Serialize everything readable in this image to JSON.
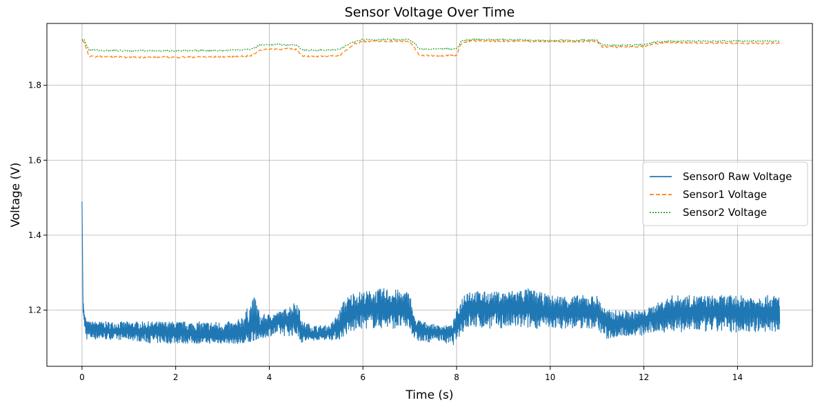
{
  "chart_data": {
    "type": "line",
    "title": "Sensor Voltage Over Time",
    "xlabel": "Time (s)",
    "ylabel": "Voltage (V)",
    "xlim": [
      -0.75,
      15.6
    ],
    "ylim": [
      1.05,
      1.965
    ],
    "xticks": [
      0,
      2,
      4,
      6,
      8,
      10,
      12,
      14
    ],
    "xtick_labels": [
      "0",
      "2",
      "4",
      "6",
      "8",
      "10",
      "12",
      "14"
    ],
    "yticks": [
      1.2,
      1.4,
      1.6,
      1.8
    ],
    "ytick_labels": [
      "1.2",
      "1.4",
      "1.6",
      "1.8"
    ],
    "grid": true,
    "legend_position": "center-right",
    "series": [
      {
        "name": "Sensor0 Raw Voltage",
        "color": "#1f77b4",
        "style": "solid",
        "x": [
          0.0,
          0.02,
          0.05,
          0.1,
          0.15,
          0.3,
          0.6,
          1.0,
          1.5,
          2.0,
          2.5,
          3.0,
          3.3,
          3.5,
          3.7,
          3.8,
          4.0,
          4.3,
          4.6,
          4.7,
          5.0,
          5.3,
          5.5,
          5.6,
          5.8,
          6.0,
          6.5,
          7.0,
          7.1,
          7.3,
          7.6,
          7.9,
          8.0,
          8.2,
          8.5,
          9.0,
          9.5,
          10.0,
          10.5,
          11.0,
          11.2,
          11.5,
          11.8,
          12.0,
          12.3,
          12.6,
          13.0,
          13.5,
          14.0,
          14.5,
          14.9
        ],
        "y": [
          1.49,
          1.23,
          1.18,
          1.16,
          1.15,
          1.15,
          1.14,
          1.14,
          1.14,
          1.14,
          1.13,
          1.13,
          1.13,
          1.14,
          1.16,
          1.14,
          1.16,
          1.17,
          1.17,
          1.14,
          1.13,
          1.14,
          1.15,
          1.17,
          1.19,
          1.2,
          1.2,
          1.19,
          1.15,
          1.14,
          1.14,
          1.14,
          1.16,
          1.2,
          1.2,
          1.2,
          1.2,
          1.19,
          1.19,
          1.19,
          1.16,
          1.16,
          1.16,
          1.17,
          1.18,
          1.19,
          1.19,
          1.19,
          1.19,
          1.19,
          1.19
        ],
        "envelope_min": [
          1.49,
          1.19,
          1.14,
          1.12,
          1.12,
          1.12,
          1.12,
          1.12,
          1.11,
          1.11,
          1.11,
          1.11,
          1.11,
          1.1,
          1.12,
          1.12,
          1.13,
          1.13,
          1.13,
          1.11,
          1.12,
          1.12,
          1.12,
          1.13,
          1.14,
          1.15,
          1.15,
          1.15,
          1.12,
          1.11,
          1.12,
          1.1,
          1.12,
          1.15,
          1.15,
          1.15,
          1.15,
          1.15,
          1.15,
          1.15,
          1.12,
          1.13,
          1.13,
          1.13,
          1.14,
          1.14,
          1.14,
          1.14,
          1.14,
          1.14,
          1.14
        ],
        "envelope_max": [
          1.49,
          1.23,
          1.19,
          1.17,
          1.17,
          1.17,
          1.17,
          1.17,
          1.17,
          1.17,
          1.17,
          1.17,
          1.17,
          1.2,
          1.24,
          1.19,
          1.19,
          1.2,
          1.23,
          1.17,
          1.16,
          1.16,
          1.2,
          1.23,
          1.25,
          1.25,
          1.26,
          1.25,
          1.18,
          1.17,
          1.16,
          1.16,
          1.2,
          1.26,
          1.25,
          1.25,
          1.26,
          1.24,
          1.24,
          1.24,
          1.2,
          1.2,
          1.2,
          1.2,
          1.22,
          1.24,
          1.24,
          1.24,
          1.24,
          1.24,
          1.24
        ]
      },
      {
        "name": "Sensor1 Voltage",
        "color": "#ff7f0e",
        "style": "dashed",
        "x": [
          0.0,
          0.05,
          0.1,
          0.15,
          0.5,
          1.0,
          2.0,
          3.0,
          3.6,
          3.8,
          4.0,
          4.5,
          4.6,
          4.7,
          5.0,
          5.5,
          5.8,
          6.0,
          6.5,
          7.0,
          7.1,
          7.2,
          7.5,
          8.0,
          8.1,
          8.3,
          9.0,
          10.0,
          10.5,
          11.0,
          11.1,
          11.5,
          12.0,
          12.2,
          12.5,
          13.0,
          14.0,
          14.9
        ],
        "y": [
          1.92,
          1.915,
          1.895,
          1.877,
          1.876,
          1.875,
          1.875,
          1.876,
          1.878,
          1.894,
          1.897,
          1.897,
          1.895,
          1.879,
          1.876,
          1.879,
          1.91,
          1.917,
          1.917,
          1.917,
          1.9,
          1.88,
          1.879,
          1.88,
          1.912,
          1.918,
          1.918,
          1.917,
          1.917,
          1.917,
          1.903,
          1.902,
          1.904,
          1.91,
          1.914,
          1.913,
          1.912,
          1.912
        ]
      },
      {
        "name": "Sensor2 Voltage",
        "color": "#2ca02c",
        "style": "dotted",
        "x": [
          0.0,
          0.05,
          0.1,
          0.15,
          0.5,
          1.0,
          2.0,
          3.0,
          3.6,
          3.8,
          4.0,
          4.5,
          4.6,
          4.7,
          5.0,
          5.5,
          5.8,
          6.0,
          6.5,
          7.0,
          7.1,
          7.2,
          7.5,
          8.0,
          8.1,
          8.3,
          9.0,
          10.0,
          10.5,
          11.0,
          11.1,
          11.5,
          12.0,
          12.2,
          12.5,
          13.0,
          14.0,
          14.9
        ],
        "y": [
          1.922,
          1.92,
          1.905,
          1.895,
          1.893,
          1.892,
          1.892,
          1.893,
          1.896,
          1.907,
          1.909,
          1.908,
          1.907,
          1.895,
          1.893,
          1.896,
          1.917,
          1.922,
          1.922,
          1.922,
          1.912,
          1.897,
          1.896,
          1.897,
          1.918,
          1.922,
          1.922,
          1.92,
          1.92,
          1.92,
          1.908,
          1.906,
          1.908,
          1.914,
          1.918,
          1.918,
          1.918,
          1.918
        ]
      }
    ]
  }
}
